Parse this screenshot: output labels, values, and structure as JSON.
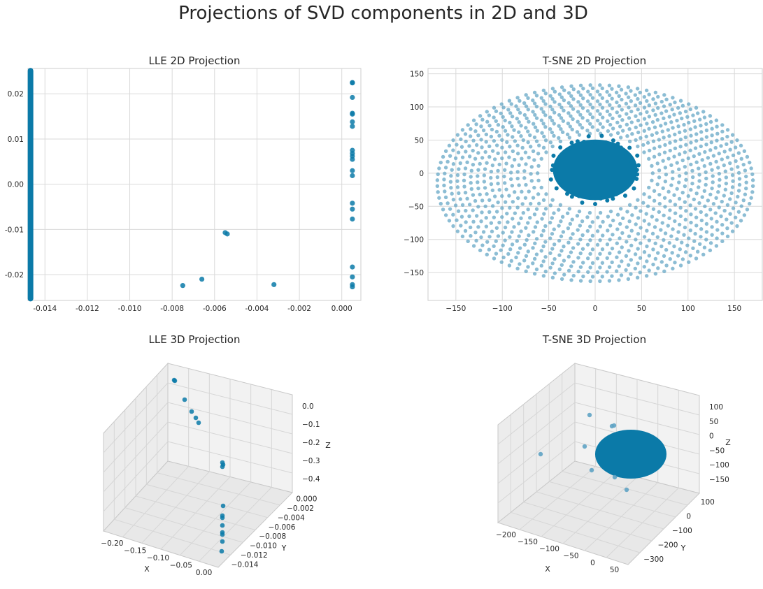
{
  "figure": {
    "title": "Projections of SVD components in 2D and 3D",
    "point_color": "#0b7aa8"
  },
  "chart_data": [
    {
      "type": "scatter",
      "title": "LLE 2D Projection",
      "xlabel": "",
      "ylabel": "",
      "xlim": [
        -0.0148,
        0.0009
      ],
      "ylim": [
        -0.0257,
        0.0256
      ],
      "xticks": [
        -0.014,
        -0.012,
        -0.01,
        -0.008,
        -0.006,
        -0.004,
        -0.002,
        0.0
      ],
      "xtick_labels": [
        "-0.014",
        "-0.012",
        "-0.010",
        "-0.008",
        "-0.006",
        "-0.004",
        "-0.002",
        "0.000"
      ],
      "yticks": [
        -0.02,
        -0.01,
        0.0,
        0.01,
        0.02
      ],
      "ytick_labels": [
        "-0.02",
        "-0.01",
        "0.00",
        "0.01",
        "0.02"
      ],
      "grid": true,
      "series": [
        {
          "points": [
            [
              0.0005,
              0.0225
            ],
            [
              0.0005,
              0.0224
            ],
            [
              0.0005,
              0.0192
            ],
            [
              0.0005,
              0.0157
            ],
            [
              0.0005,
              0.0155
            ],
            [
              0.0005,
              0.0138
            ],
            [
              0.0005,
              0.0128
            ],
            [
              0.0005,
              0.0075
            ],
            [
              0.0005,
              0.0068
            ],
            [
              0.0005,
              0.0062
            ],
            [
              0.0005,
              0.0055
            ],
            [
              0.0005,
              0.003
            ],
            [
              0.0005,
              0.0019
            ],
            [
              0.0005,
              -0.0042
            ],
            [
              0.0005,
              -0.0055
            ],
            [
              0.0005,
              -0.0077
            ],
            [
              0.0005,
              -0.0183
            ],
            [
              0.0005,
              -0.0205
            ],
            [
              0.0005,
              -0.0222
            ],
            [
              0.0005,
              -0.0227
            ],
            [
              -0.0055,
              -0.0107
            ],
            [
              -0.0054,
              -0.011
            ],
            [
              -0.0066,
              -0.021
            ],
            [
              -0.0075,
              -0.0224
            ],
            [
              -0.0032,
              -0.0222
            ]
          ],
          "dense_line": {
            "x": -0.01468,
            "y_from": -0.0253,
            "y_to": 0.0251
          }
        }
      ]
    },
    {
      "type": "scatter",
      "title": "T-SNE 2D Projection",
      "xlabel": "",
      "ylabel": "",
      "xlim": [
        -180,
        180
      ],
      "ylim": [
        -192,
        158
      ],
      "xticks": [
        -150,
        -100,
        -50,
        0,
        50,
        100,
        150
      ],
      "xtick_labels": [
        "−150",
        "−100",
        "−50",
        "0",
        "50",
        "100",
        "150"
      ],
      "yticks": [
        -150,
        -100,
        -50,
        0,
        50,
        100,
        150
      ],
      "ytick_labels": [
        "−150",
        "−100",
        "−50",
        "0",
        "50",
        "100",
        "150"
      ],
      "grid": true,
      "series": [
        {
          "kind": "outer_ring",
          "x_radius_outer": 170,
          "y_radius_outer": 148,
          "x_radius_inner": 62,
          "y_radius_inner": 60
        },
        {
          "kind": "inner_cluster",
          "center": [
            0,
            5
          ],
          "x_radius": 50,
          "y_radius": 52
        }
      ]
    },
    {
      "type": "scatter",
      "title": "LLE 3D Projection",
      "xlabel": "X",
      "ylabel": "Y",
      "zlabel": "Z",
      "xtick_labels": [
        "−0.20",
        "−0.15",
        "−0.10",
        "−0.05",
        "0.00"
      ],
      "ytick_labels": [
        "0.000",
        "−0.002",
        "−0.004",
        "−0.006",
        "−0.008",
        "−0.010",
        "−0.012",
        "−0.014"
      ],
      "ztick_labels": [
        "0.0",
        "−0.1",
        "−0.2",
        "−0.3",
        "−0.4"
      ]
    },
    {
      "type": "scatter",
      "title": "T-SNE 3D Projection",
      "xlabel": "X",
      "ylabel": "Y",
      "zlabel": "Z",
      "xtick_labels": [
        "−200",
        "−150",
        "−100",
        "−50",
        "0",
        "50"
      ],
      "ytick_labels": [
        "100",
        "0",
        "−100",
        "−200",
        "−300"
      ],
      "ztick_labels": [
        "100",
        "50",
        "0",
        "−50",
        "−100",
        "−150"
      ]
    }
  ]
}
